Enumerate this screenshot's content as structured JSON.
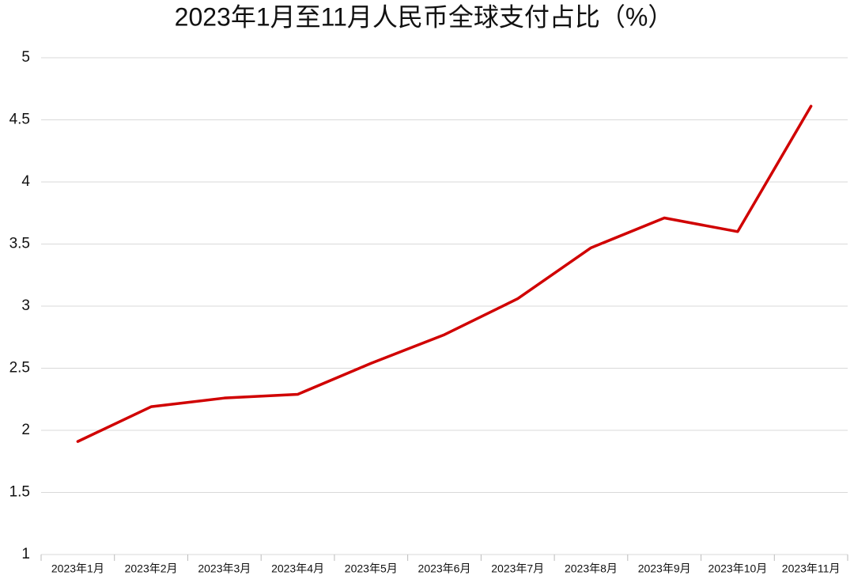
{
  "chart_data": {
    "type": "line",
    "title": "2023年1月至11月人民币全球支付占比（%）",
    "categories": [
      "2023年1月",
      "2023年2月",
      "2023年3月",
      "2023年4月",
      "2023年5月",
      "2023年6月",
      "2023年7月",
      "2023年8月",
      "2023年9月",
      "2023年10月",
      "2023年11月"
    ],
    "series": [
      {
        "color": "#d00000",
        "values": [
          1.91,
          2.19,
          2.26,
          2.29,
          2.54,
          2.77,
          3.06,
          3.47,
          3.71,
          3.6,
          4.61
        ]
      }
    ],
    "ylim": [
      1,
      5
    ],
    "yticks": [
      1,
      1.5,
      2,
      2.5,
      3,
      3.5,
      4,
      4.5,
      5
    ],
    "grid": true
  }
}
